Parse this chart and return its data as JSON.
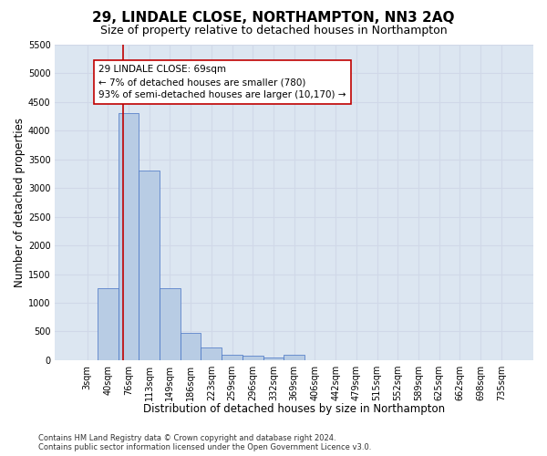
{
  "title": "29, LINDALE CLOSE, NORTHAMPTON, NN3 2AQ",
  "subtitle": "Size of property relative to detached houses in Northampton",
  "xlabel": "Distribution of detached houses by size in Northampton",
  "ylabel": "Number of detached properties",
  "footer_line1": "Contains HM Land Registry data © Crown copyright and database right 2024.",
  "footer_line2": "Contains public sector information licensed under the Open Government Licence v3.0.",
  "categories": [
    "3sqm",
    "40sqm",
    "76sqm",
    "113sqm",
    "149sqm",
    "186sqm",
    "223sqm",
    "259sqm",
    "296sqm",
    "332sqm",
    "369sqm",
    "406sqm",
    "442sqm",
    "479sqm",
    "515sqm",
    "552sqm",
    "589sqm",
    "625sqm",
    "662sqm",
    "698sqm",
    "735sqm"
  ],
  "values": [
    0,
    1250,
    4300,
    3300,
    1250,
    480,
    220,
    100,
    70,
    50,
    100,
    0,
    0,
    0,
    0,
    0,
    0,
    0,
    0,
    0,
    0
  ],
  "bar_color": "#b8cce4",
  "bar_edge_color": "#4472c4",
  "bar_edge_width": 0.5,
  "grid_color": "#d0d8e8",
  "bg_color": "#dce6f1",
  "ylim": [
    0,
    5500
  ],
  "yticks": [
    0,
    500,
    1000,
    1500,
    2000,
    2500,
    3000,
    3500,
    4000,
    4500,
    5000,
    5500
  ],
  "red_line_color": "#c00000",
  "red_line_x": 1.75,
  "annotation_text": "29 LINDALE CLOSE: 69sqm\n← 7% of detached houses are smaller (780)\n93% of semi-detached houses are larger (10,170) →",
  "annotation_box_color": "#ffffff",
  "annotation_text_color": "#000000",
  "title_fontsize": 11,
  "subtitle_fontsize": 9,
  "xlabel_fontsize": 8.5,
  "ylabel_fontsize": 8.5,
  "tick_fontsize": 7,
  "annotation_fontsize": 7.5,
  "footer_fontsize": 6
}
